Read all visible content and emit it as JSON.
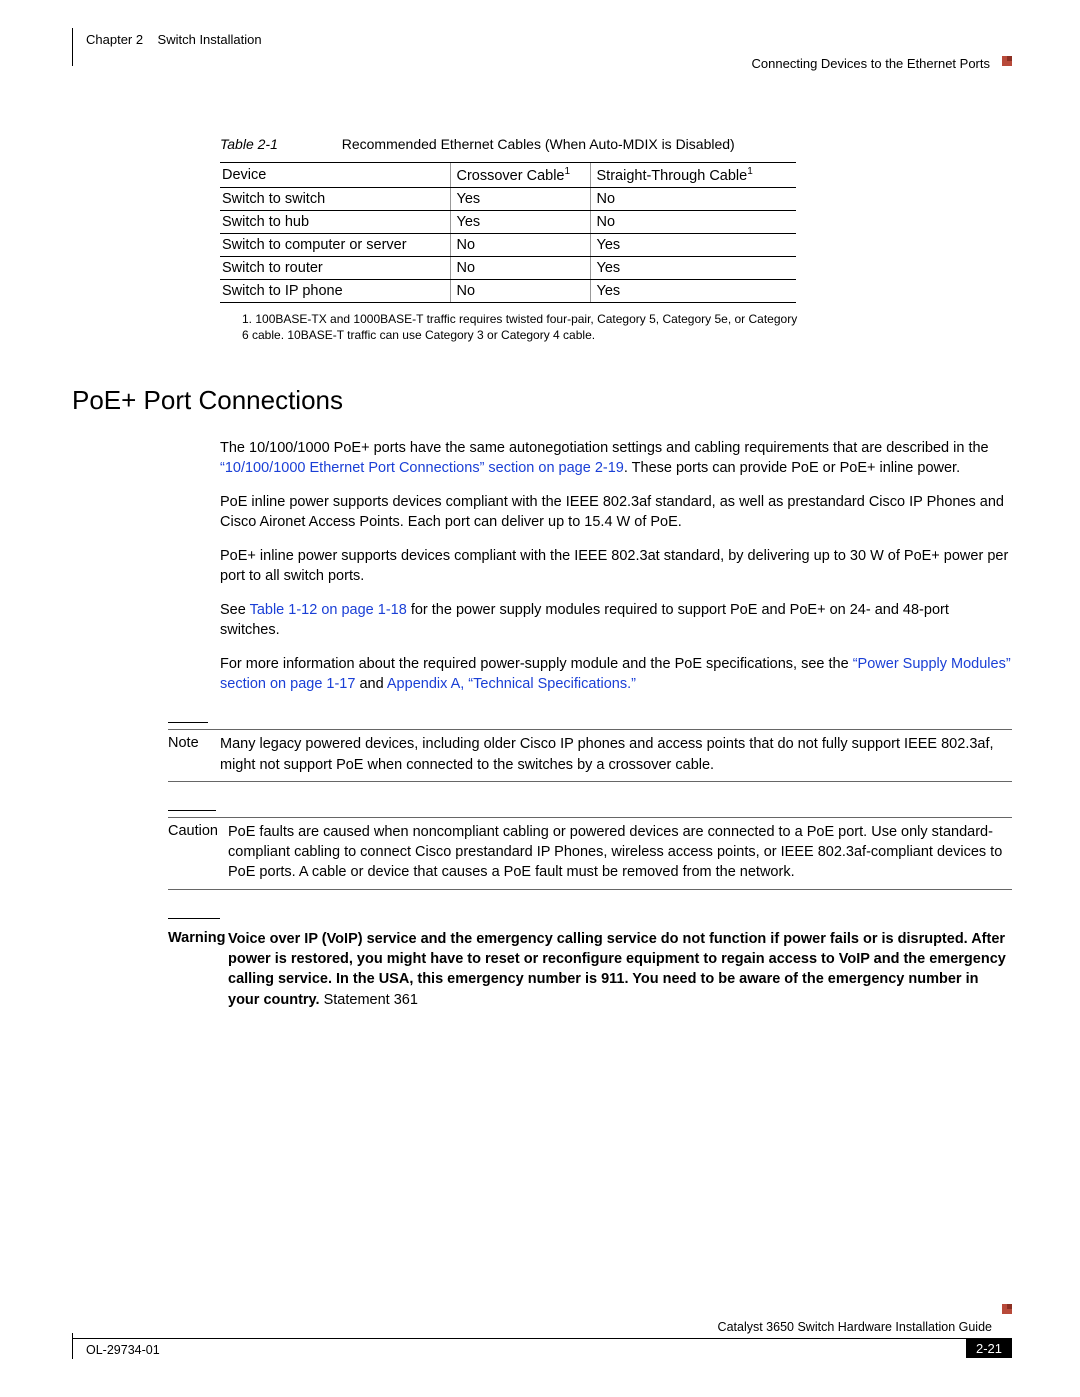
{
  "header": {
    "chapter_label": "Chapter 2",
    "chapter_title": "Switch Installation",
    "section_title": "Connecting Devices to the Ethernet Ports"
  },
  "table": {
    "label": "Table 2-1",
    "caption": "Recommended Ethernet Cables (When Auto-MDIX is Disabled)",
    "columns": [
      "Device",
      "Crossover Cable",
      "Straight-Through Cable"
    ],
    "col_sup": [
      "",
      "1",
      "1"
    ],
    "rows": [
      [
        "Switch to switch",
        "Yes",
        "No"
      ],
      [
        "Switch to hub",
        "Yes",
        "No"
      ],
      [
        "Switch to computer or server",
        "No",
        "Yes"
      ],
      [
        "Switch to router",
        "No",
        "Yes"
      ],
      [
        "Switch to IP phone",
        "No",
        "Yes"
      ]
    ],
    "footnote_num": "1.",
    "footnote": "100BASE-TX and 1000BASE-T traffic requires twisted four-pair, Category 5, Category 5e, or Category 6 cable. 10BASE-T traffic can use Category 3 or Category 4 cable."
  },
  "section_heading": "PoE+ Port Connections",
  "p1a": "The 10/100/1000 PoE+ ports have the same autonegotiation settings and cabling requirements that are described in the ",
  "p1_link": "“10/100/1000 Ethernet Port Connections” section on page 2-19",
  "p1b": ". These ports can provide PoE or PoE+ inline power.",
  "p2": "PoE inline power supports devices compliant with the IEEE 802.3af standard, as well as prestandard Cisco IP Phones and Cisco Aironet Access Points. Each port can deliver up to 15.4 W of PoE.",
  "p3": "PoE+ inline power supports devices compliant with the IEEE 802.3at standard, by delivering up to 30 W of PoE+ power per port to all switch ports.",
  "p4a": "See ",
  "p4_link": "Table 1-12 on page 1-18",
  "p4b": " for the power supply modules required to support PoE and PoE+ on 24- and 48-port switches.",
  "p5a": "For more information about the required power-supply module and the PoE specifications, see the ",
  "p5_link1": "“Power Supply Modules” section on page 1-17",
  "p5_mid": " and ",
  "p5_link2": "Appendix A, “Technical Specifications.”",
  "note": {
    "label": "Note",
    "text": "Many legacy powered devices, including older Cisco IP phones and access points that do not fully support IEEE 802.3af, might not support PoE when connected to the switches by a crossover cable."
  },
  "caution": {
    "label": "Caution",
    "text": "PoE faults are caused when noncompliant cabling or powered devices are connected to a PoE port. Use only standard-compliant cabling to connect Cisco prestandard IP Phones, wireless access points, or IEEE 802.3af-compliant devices to PoE ports. A cable or device that causes a PoE fault must be removed from the network."
  },
  "warning": {
    "label": "Warning",
    "text": "Voice over IP (VoIP) service and the emergency calling service do not function if power fails or is disrupted. After power is restored, you might have to reset or reconfigure equipment to regain access to VoIP and the emergency calling service. In the USA, this emergency number is 911. You need to be aware of the emergency number in your country.",
    "statement": "Statement 361"
  },
  "footer": {
    "guide_title": "Catalyst 3650 Switch Hardware Installation Guide",
    "doc_number": "OL-29734-01",
    "page_number": "2-21"
  },
  "colors": {
    "link": "#1a3fd6",
    "accent": "#b84a3a",
    "text": "#000000",
    "bg": "#ffffff"
  }
}
